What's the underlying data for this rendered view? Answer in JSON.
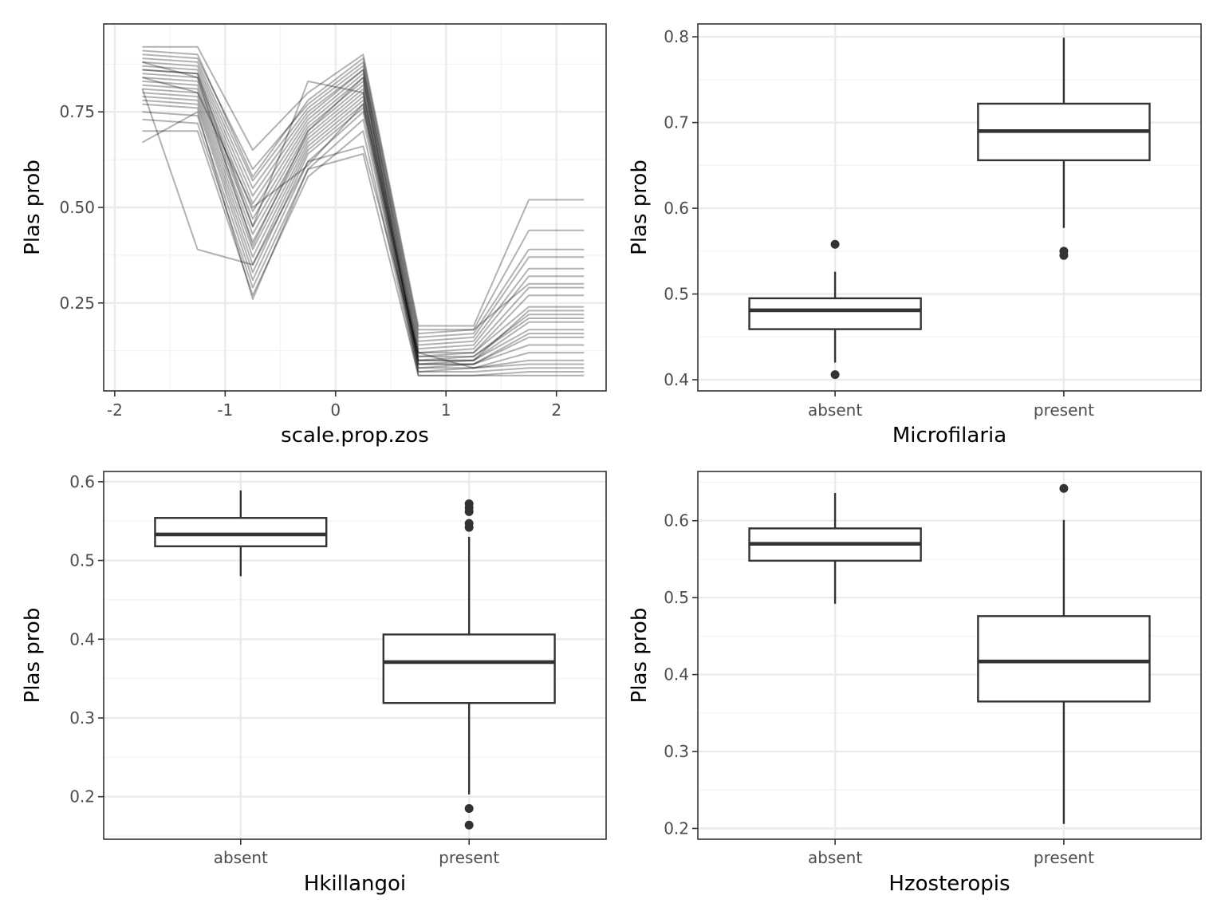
{
  "chart_data": [
    {
      "type": "line",
      "xlabel": "scale.prop.zos",
      "ylabel": "Plas prob",
      "xlim": [
        -2.1,
        2.45
      ],
      "ylim": [
        0.02,
        0.98
      ],
      "x_ticks": [
        -2,
        -1,
        0,
        1,
        2
      ],
      "x_tick_labels": [
        "-2",
        "-1",
        "0",
        "1",
        "2"
      ],
      "y_ticks": [
        0.25,
        0.5,
        0.75
      ],
      "y_tick_labels": [
        "0.25",
        "0.50",
        "0.75"
      ],
      "grid": true,
      "line_color": "#000000",
      "line_alpha": 0.3,
      "x": [
        -1.75,
        -1.25,
        -0.75,
        -0.25,
        0.25,
        0.75,
        1.25,
        1.75,
        2.25
      ],
      "series": [
        {
          "values": [
            0.92,
            0.92,
            0.65,
            0.8,
            0.9,
            0.19,
            0.19,
            0.52,
            0.52
          ]
        },
        {
          "values": [
            0.9,
            0.89,
            0.6,
            0.77,
            0.88,
            0.17,
            0.18,
            0.44,
            0.44
          ]
        },
        {
          "values": [
            0.89,
            0.88,
            0.57,
            0.76,
            0.87,
            0.16,
            0.17,
            0.39,
            0.39
          ]
        },
        {
          "values": [
            0.88,
            0.87,
            0.55,
            0.75,
            0.86,
            0.15,
            0.16,
            0.37,
            0.37
          ]
        },
        {
          "values": [
            0.87,
            0.86,
            0.53,
            0.74,
            0.86,
            0.14,
            0.15,
            0.34,
            0.34
          ]
        },
        {
          "values": [
            0.86,
            0.85,
            0.51,
            0.73,
            0.85,
            0.13,
            0.14,
            0.32,
            0.32
          ]
        },
        {
          "values": [
            0.85,
            0.84,
            0.49,
            0.72,
            0.84,
            0.12,
            0.13,
            0.29,
            0.29
          ]
        },
        {
          "values": [
            0.84,
            0.83,
            0.47,
            0.71,
            0.83,
            0.12,
            0.12,
            0.27,
            0.27
          ]
        },
        {
          "values": [
            0.83,
            0.82,
            0.45,
            0.7,
            0.82,
            0.11,
            0.12,
            0.24,
            0.24
          ]
        },
        {
          "values": [
            0.82,
            0.81,
            0.43,
            0.69,
            0.81,
            0.1,
            0.11,
            0.22,
            0.22
          ]
        },
        {
          "values": [
            0.81,
            0.8,
            0.41,
            0.68,
            0.8,
            0.1,
            0.1,
            0.2,
            0.2
          ]
        },
        {
          "values": [
            0.8,
            0.79,
            0.39,
            0.67,
            0.79,
            0.09,
            0.1,
            0.18,
            0.18
          ]
        },
        {
          "values": [
            0.79,
            0.78,
            0.37,
            0.66,
            0.78,
            0.09,
            0.09,
            0.16,
            0.16
          ]
        },
        {
          "values": [
            0.78,
            0.77,
            0.35,
            0.65,
            0.77,
            0.08,
            0.09,
            0.14,
            0.14
          ]
        },
        {
          "values": [
            0.77,
            0.76,
            0.33,
            0.64,
            0.76,
            0.08,
            0.08,
            0.12,
            0.12
          ]
        },
        {
          "values": [
            0.75,
            0.74,
            0.31,
            0.62,
            0.75,
            0.07,
            0.08,
            0.1,
            0.1
          ]
        },
        {
          "values": [
            0.73,
            0.72,
            0.29,
            0.6,
            0.73,
            0.07,
            0.07,
            0.08,
            0.08
          ]
        },
        {
          "values": [
            0.7,
            0.7,
            0.27,
            0.58,
            0.7,
            0.06,
            0.06,
            0.07,
            0.07
          ]
        },
        {
          "values": [
            0.67,
            0.75,
            0.26,
            0.6,
            0.64,
            0.06,
            0.06,
            0.06,
            0.06
          ]
        },
        {
          "values": [
            0.81,
            0.39,
            0.35,
            0.62,
            0.66,
            0.12,
            0.08,
            0.09,
            0.09
          ]
        },
        {
          "values": [
            0.86,
            0.85,
            0.45,
            0.83,
            0.8,
            0.1,
            0.1,
            0.23,
            0.23
          ]
        },
        {
          "values": [
            0.91,
            0.9,
            0.58,
            0.78,
            0.89,
            0.18,
            0.18,
            0.3,
            0.3
          ]
        },
        {
          "values": [
            0.84,
            0.8,
            0.5,
            0.61,
            0.77,
            0.11,
            0.11,
            0.21,
            0.21
          ]
        },
        {
          "values": [
            0.88,
            0.84,
            0.4,
            0.7,
            0.84,
            0.09,
            0.09,
            0.17,
            0.17
          ]
        }
      ]
    },
    {
      "type": "box",
      "xlabel": "Microfilaria",
      "ylabel": "Plas prob",
      "categories": [
        "absent",
        "present"
      ],
      "ylim": [
        0.387,
        0.815
      ],
      "y_ticks": [
        0.4,
        0.5,
        0.6,
        0.7,
        0.8
      ],
      "y_tick_labels": [
        "0.4",
        "0.5",
        "0.6",
        "0.7",
        "0.8"
      ],
      "grid": true,
      "boxes": [
        {
          "lower_whisker": 0.42,
          "q1": 0.459,
          "median": 0.481,
          "q3": 0.495,
          "upper_whisker": 0.526,
          "outliers": [
            0.558,
            0.406
          ]
        },
        {
          "lower_whisker": 0.577,
          "q1": 0.656,
          "median": 0.69,
          "q3": 0.722,
          "upper_whisker": 0.799,
          "outliers": [
            0.55,
            0.545
          ]
        }
      ]
    },
    {
      "type": "box",
      "xlabel": "Hkillangoi",
      "ylabel": "Plas prob",
      "categories": [
        "absent",
        "present"
      ],
      "ylim": [
        0.146,
        0.613
      ],
      "y_ticks": [
        0.2,
        0.3,
        0.4,
        0.5,
        0.6
      ],
      "y_tick_labels": [
        "0.2",
        "0.3",
        "0.4",
        "0.5",
        "0.6"
      ],
      "grid": true,
      "boxes": [
        {
          "lower_whisker": 0.48,
          "q1": 0.518,
          "median": 0.533,
          "q3": 0.554,
          "upper_whisker": 0.589,
          "outliers": []
        },
        {
          "lower_whisker": 0.203,
          "q1": 0.319,
          "median": 0.371,
          "q3": 0.406,
          "upper_whisker": 0.53,
          "outliers": [
            0.572,
            0.567,
            0.562,
            0.547,
            0.542,
            0.185,
            0.164
          ]
        }
      ]
    },
    {
      "type": "box",
      "xlabel": "Hzosteropis",
      "ylabel": "Plas prob",
      "categories": [
        "absent",
        "present"
      ],
      "ylim": [
        0.186,
        0.664
      ],
      "y_ticks": [
        0.2,
        0.3,
        0.4,
        0.5,
        0.6
      ],
      "y_tick_labels": [
        "0.2",
        "0.3",
        "0.4",
        "0.5",
        "0.6"
      ],
      "grid": true,
      "boxes": [
        {
          "lower_whisker": 0.492,
          "q1": 0.548,
          "median": 0.57,
          "q3": 0.59,
          "upper_whisker": 0.636,
          "outliers": []
        },
        {
          "lower_whisker": 0.206,
          "q1": 0.365,
          "median": 0.417,
          "q3": 0.476,
          "upper_whisker": 0.601,
          "outliers": [
            0.642
          ]
        }
      ]
    }
  ]
}
